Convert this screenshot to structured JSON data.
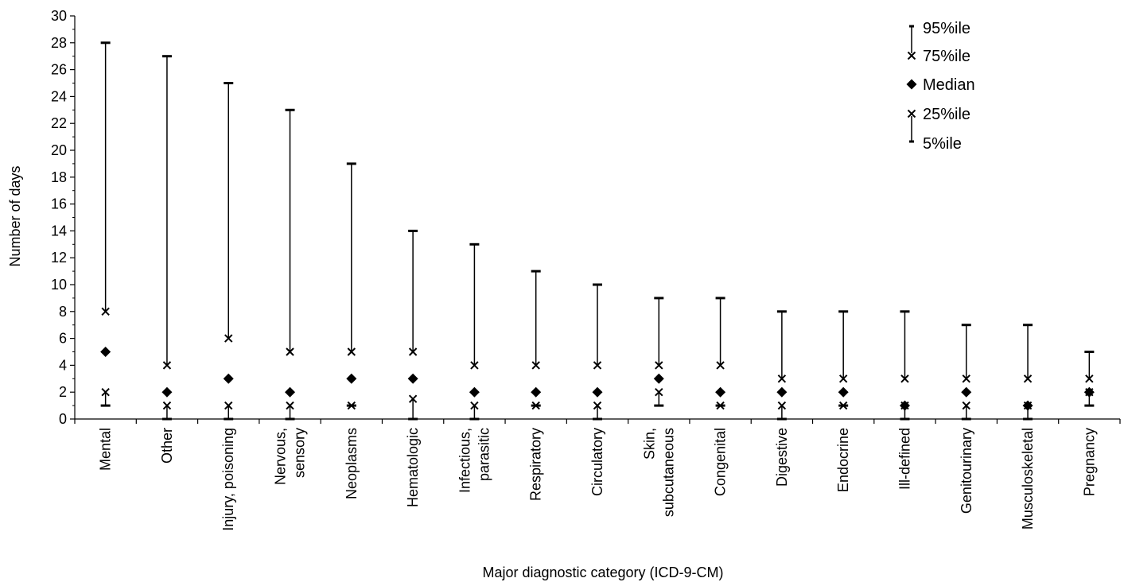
{
  "chart_data": {
    "type": "scatter",
    "xlabel": "Major diagnostic category (ICD-9-CM)",
    "ylabel": "Number of days",
    "ylim": [
      0,
      30
    ],
    "ytick_step": 2,
    "grid": false,
    "legend_position": "top-right",
    "legend": [
      {
        "key": "p95",
        "label": "95%ile"
      },
      {
        "key": "p75",
        "label": "75%ile"
      },
      {
        "key": "median",
        "label": "Median"
      },
      {
        "key": "p25",
        "label": "25%ile"
      },
      {
        "key": "p5",
        "label": "5%ile"
      }
    ],
    "categories": [
      {
        "lines": [
          "Mental"
        ],
        "p5": 1,
        "p25": 2,
        "median": 5,
        "p75": 8,
        "p95": 28
      },
      {
        "lines": [
          "Other"
        ],
        "p5": 0,
        "p25": 1,
        "median": 2,
        "p75": 4,
        "p95": 27
      },
      {
        "lines": [
          "Injury, poisoning"
        ],
        "p5": 0,
        "p25": 1,
        "median": 3,
        "p75": 6,
        "p95": 25
      },
      {
        "lines": [
          "Nervous,",
          "sensory"
        ],
        "p5": 0,
        "p25": 1,
        "median": 2,
        "p75": 5,
        "p95": 23
      },
      {
        "lines": [
          "Neoplasms"
        ],
        "p5": 1,
        "p25": 1,
        "median": 3,
        "p75": 5,
        "p95": 19
      },
      {
        "lines": [
          "Hematologic"
        ],
        "p5": 0,
        "p25": 1.5,
        "median": 3,
        "p75": 5,
        "p95": 14
      },
      {
        "lines": [
          "Infectious,",
          "parasitic"
        ],
        "p5": 0,
        "p25": 1,
        "median": 2,
        "p75": 4,
        "p95": 13
      },
      {
        "lines": [
          "Respiratory"
        ],
        "p5": 1,
        "p25": 1,
        "median": 2,
        "p75": 4,
        "p95": 11
      },
      {
        "lines": [
          "Circulatory"
        ],
        "p5": 0,
        "p25": 1,
        "median": 2,
        "p75": 4,
        "p95": 10
      },
      {
        "lines": [
          "Skin,",
          "subcutaneous"
        ],
        "p5": 1,
        "p25": 2,
        "median": 3,
        "p75": 4,
        "p95": 9
      },
      {
        "lines": [
          "Congenital"
        ],
        "p5": 1,
        "p25": 1,
        "median": 2,
        "p75": 4,
        "p95": 9
      },
      {
        "lines": [
          "Digestive"
        ],
        "p5": 0,
        "p25": 1,
        "median": 2,
        "p75": 3,
        "p95": 8
      },
      {
        "lines": [
          "Endocrine"
        ],
        "p5": 1,
        "p25": 1,
        "median": 2,
        "p75": 3,
        "p95": 8
      },
      {
        "lines": [
          "Ill-defined"
        ],
        "p5": 0,
        "p25": 1,
        "median": 1,
        "p75": 3,
        "p95": 8
      },
      {
        "lines": [
          "Genitourinary"
        ],
        "p5": 0,
        "p25": 1,
        "median": 2,
        "p75": 3,
        "p95": 7
      },
      {
        "lines": [
          "Musculoskeletal"
        ],
        "p5": 0,
        "p25": 1,
        "median": 1,
        "p75": 3,
        "p95": 7
      },
      {
        "lines": [
          "Pregnancy"
        ],
        "p5": 1,
        "p25": 2,
        "median": 2,
        "p75": 3,
        "p95": 5
      }
    ]
  }
}
